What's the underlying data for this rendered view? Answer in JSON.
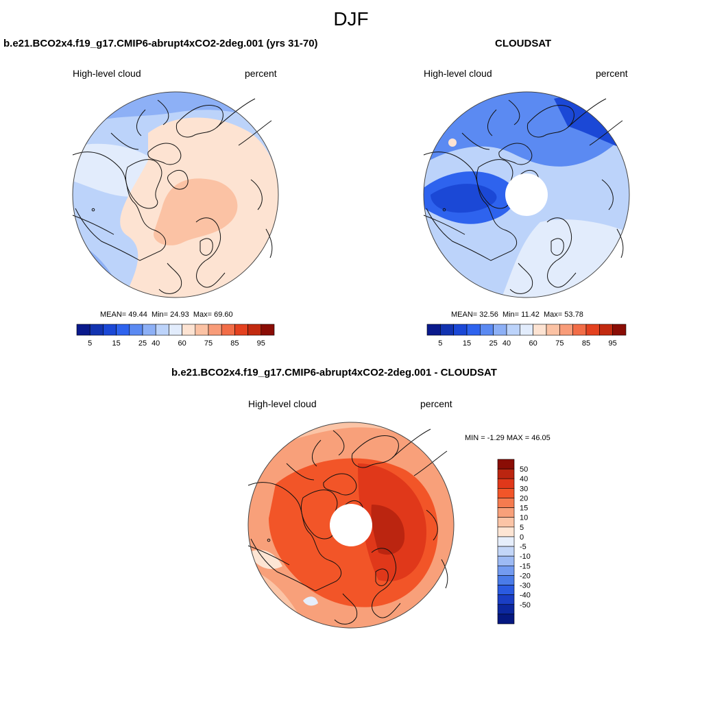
{
  "figure": {
    "title": "DJF"
  },
  "panels": [
    {
      "title": "b.e21.BCO2x4.f19_g17.CMIP6-abrupt4xCO2-2deg.001 (yrs 31-70)",
      "left_label": "High-level cloud",
      "right_label": "percent",
      "stats": {
        "mean_label": "MEAN=",
        "mean": "49.44",
        "min_label": "Min=",
        "min": "24.93",
        "max_label": "Max=",
        "max": "69.60"
      }
    },
    {
      "title": "CLOUDSAT",
      "left_label": "High-level cloud",
      "right_label": "percent",
      "stats": {
        "mean_label": "MEAN=",
        "mean": "32.56",
        "min_label": "Min=",
        "min": "11.42",
        "max_label": "Max=",
        "max": "53.78"
      }
    },
    {
      "title": "b.e21.BCO2x4.f19_g17.CMIP6-abrupt4xCO2-2deg.001 - CLOUDSAT",
      "left_label": "High-level cloud",
      "right_label": "percent",
      "stats": {
        "min_label": "MIN =",
        "min": "-1.29",
        "max_label": "MAX =",
        "max": "46.05"
      }
    }
  ],
  "colorbars": {
    "absolute": {
      "colors": [
        "#0a1a8c",
        "#1233b0",
        "#1b48d6",
        "#2e63ee",
        "#5b8af2",
        "#8db0f6",
        "#bcd3fa",
        "#e2ecfc",
        "#fde3d2",
        "#fbc2a4",
        "#f89c79",
        "#f26d47",
        "#e4411f",
        "#c22a10",
        "#8a0d05"
      ],
      "labels": [
        "5",
        "15",
        "25",
        "40",
        "60",
        "75",
        "85",
        "95"
      ]
    },
    "difference": {
      "colors": [
        "#8a0d05",
        "#bb2510",
        "#e0381a",
        "#f25528",
        "#f57b4f",
        "#f8a07a",
        "#fbc4a6",
        "#fde5d4",
        "#e6eefb",
        "#c3d6f8",
        "#9dbaf4",
        "#739bf0",
        "#4a7be8",
        "#2a5ae0",
        "#1a3ec4",
        "#0c279e",
        "#051880"
      ],
      "labels": [
        "50",
        "40",
        "30",
        "20",
        "15",
        "10",
        "5",
        "0",
        "-5",
        "-10",
        "-15",
        "-20",
        "-30",
        "-40",
        "-50"
      ]
    }
  }
}
